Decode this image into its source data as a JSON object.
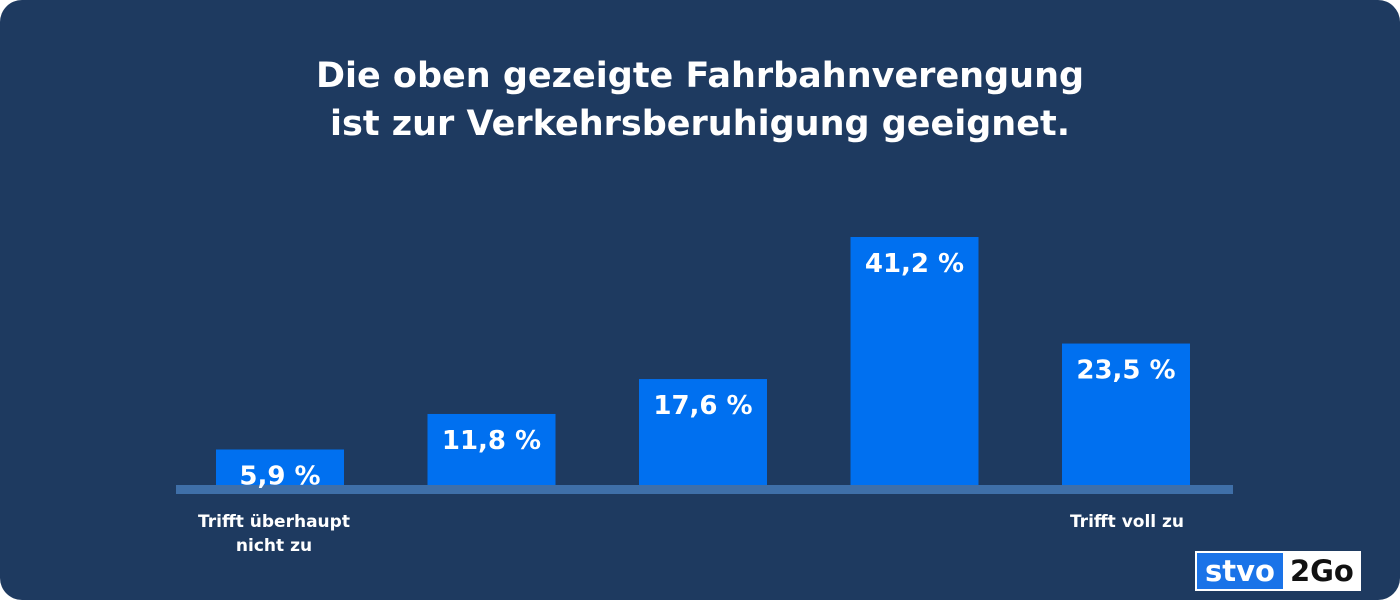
{
  "chart_data": {
    "type": "bar",
    "title": "Die oben gezeigte Fahrbahnverengung\nist zur Verkehrsberuhigung geeignet.",
    "categories": [
      "Trifft überhaupt nicht zu",
      "",
      "",
      "",
      "Trifft voll zu"
    ],
    "values": [
      5.9,
      11.8,
      17.6,
      41.2,
      23.5
    ],
    "value_labels": [
      "5,9 %",
      "11,8 %",
      "17,6 %",
      "41,2 %",
      "23,5 %"
    ],
    "xlabel": "",
    "ylabel": "",
    "ylim": [
      0,
      41.2
    ],
    "grid": false,
    "bar_color": "#0070f0",
    "background_color": "#1e3a60",
    "baseline_color": "#3f6fa8"
  },
  "category_labels": {
    "left": [
      "Trifft überhaupt",
      "nicht zu"
    ],
    "right": [
      "Trifft voll zu"
    ]
  },
  "logo": {
    "part1": "stvo",
    "part2": "2Go"
  }
}
